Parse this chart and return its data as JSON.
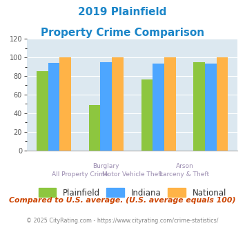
{
  "title_line1": "2019 Plainfield",
  "title_line2": "Property Crime Comparison",
  "plainfield": [
    85,
    49,
    76,
    95
  ],
  "indiana": [
    94,
    95,
    93,
    93
  ],
  "national": [
    100,
    100,
    100,
    100
  ],
  "bar_colors": {
    "plainfield": "#8dc63f",
    "indiana": "#4da6ff",
    "national": "#ffb347"
  },
  "ylim": [
    0,
    120
  ],
  "yticks": [
    0,
    20,
    40,
    60,
    80,
    100,
    120
  ],
  "legend_labels": [
    "Plainfield",
    "Indiana",
    "National"
  ],
  "top_labels": [
    [
      "Burglary",
      1.0
    ],
    [
      "Arson",
      2.5
    ]
  ],
  "bot_labels": [
    [
      "All Property Crime",
      0.5
    ],
    [
      "Motor Vehicle Theft",
      1.5
    ],
    [
      "Larceny & Theft",
      2.5
    ]
  ],
  "note": "Compared to U.S. average. (U.S. average equals 100)",
  "footer": "© 2025 CityRating.com - https://www.cityrating.com/crime-statistics/",
  "title_color": "#1a85c8",
  "xlabel_color": "#9b8cb0",
  "bg_color": "#dce8f0",
  "note_color": "#cc4400",
  "footer_color": "#888888",
  "footer_link_color": "#4488cc"
}
